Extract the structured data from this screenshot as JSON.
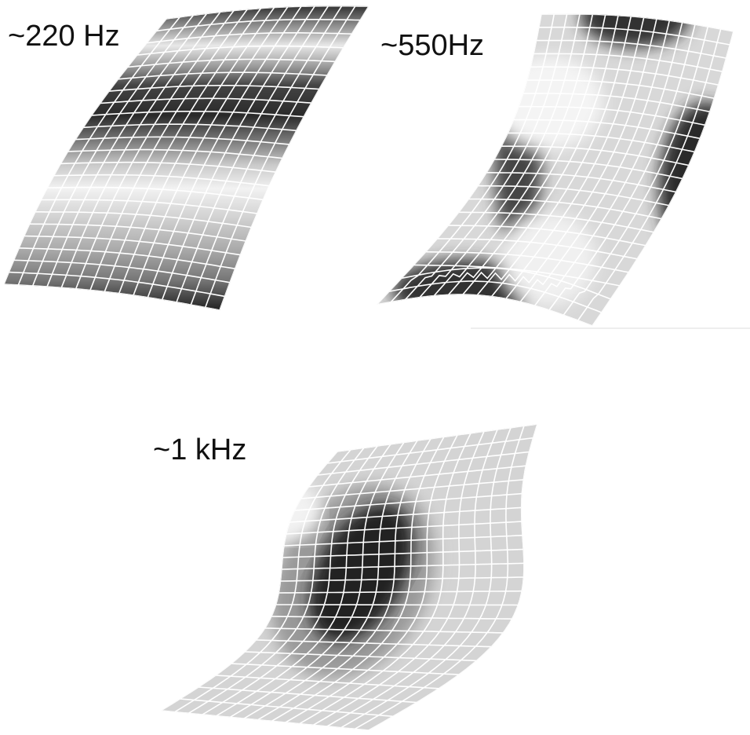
{
  "modes": [
    {
      "label": "~220 Hz"
    },
    {
      "label": "~550Hz"
    },
    {
      "label": "~1 kHz"
    }
  ]
}
